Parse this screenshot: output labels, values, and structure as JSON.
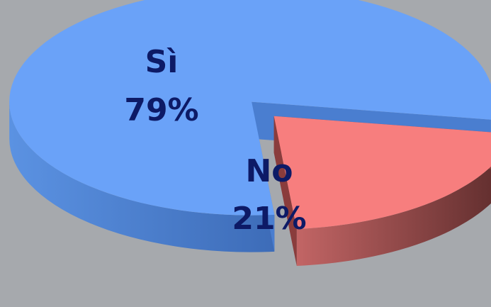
{
  "chart_data": {
    "type": "pie",
    "style": "3d-exploded",
    "title": "",
    "slices": [
      {
        "label": "Sì",
        "value": 79,
        "value_label": "79%",
        "color": "#6aa2f8",
        "side_color": "#4a7ed0"
      },
      {
        "label": "No",
        "value": 21,
        "value_label": "21%",
        "color": "#f77e7e",
        "side_color": "#8a3c3c"
      }
    ],
    "background": "#a6a9ad",
    "legend": "none"
  }
}
